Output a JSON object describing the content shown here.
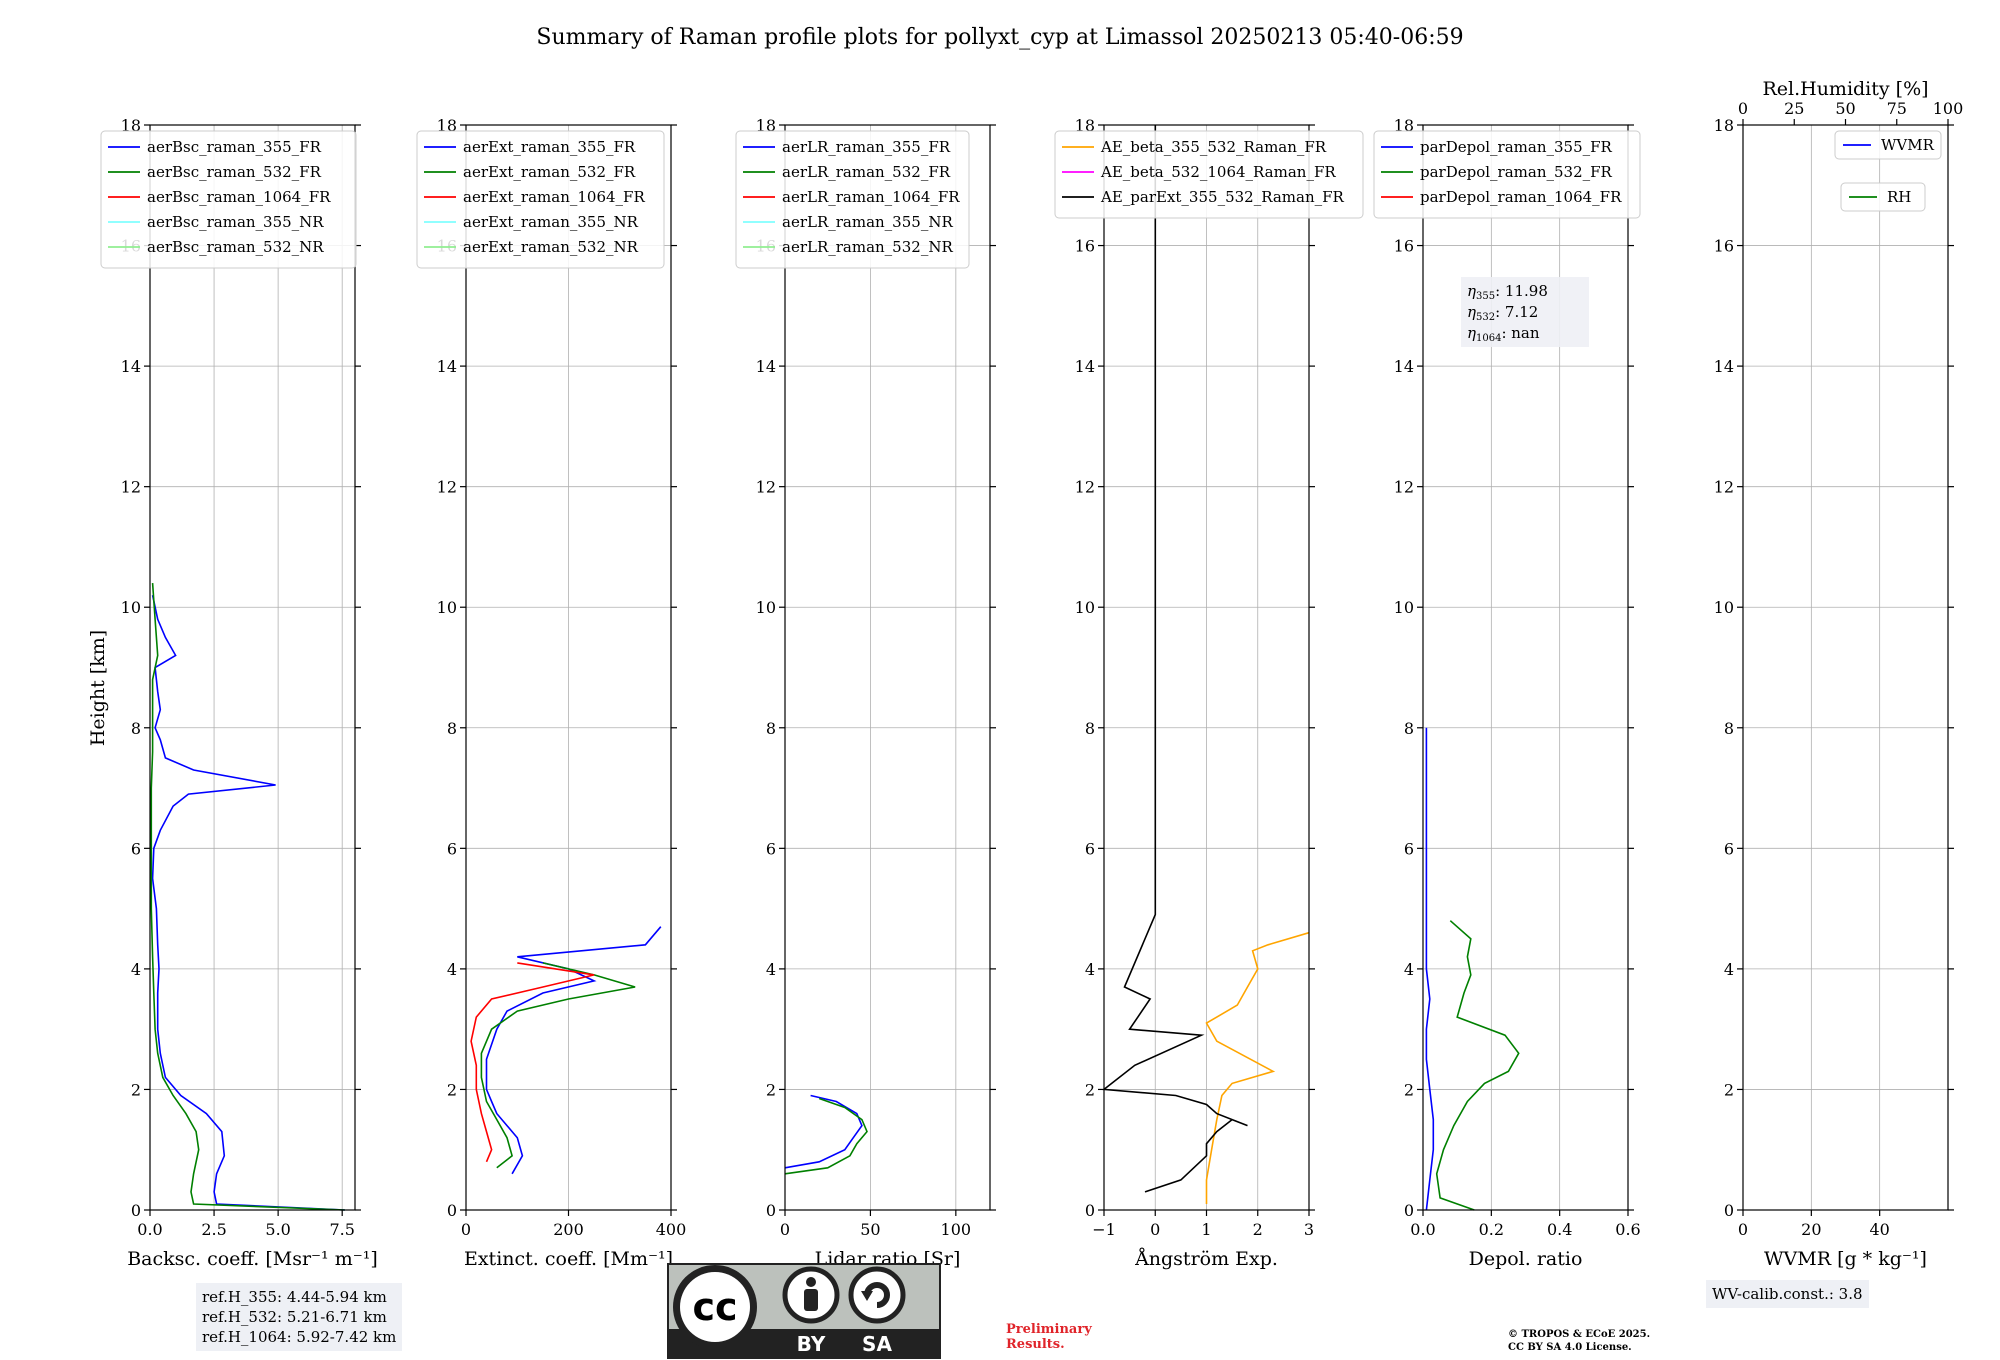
{
  "title": "Summary of Raman profile plots for pollyxt_cyp at Limassol 20250213 05:40-06:59",
  "shared_ylabel": "Height [km]",
  "ref_heights": [
    "ref.H_355: 4.44-5.94 km",
    "ref.H_532: 5.21-6.71 km",
    "ref.H_1064: 5.92-7.42 km"
  ],
  "wv_calib": "WV-calib.const.: 3.8",
  "preliminary": [
    "Preliminary",
    "Results."
  ],
  "copyright": [
    "© TROPOS & ECoE 2025.",
    "CC BY SA 4.0 License."
  ],
  "license_badge": {
    "left": "BY",
    "right": "SA",
    "mark": "cc"
  },
  "colors": {
    "blue": "#0000ff",
    "green": "#008000",
    "red": "#ff0000",
    "cyan": "#80ffff",
    "lightgreen": "#90ee90",
    "orange": "#ffa500",
    "magenta": "#ff00ff",
    "black": "#000000"
  },
  "chart_data": [
    {
      "type": "line",
      "xlabel": "Backsc. coeff. [Msr⁻¹ m⁻¹]",
      "ylabel": "Height [km]",
      "xlim": [
        0,
        8
      ],
      "ylim": [
        0,
        18
      ],
      "xticks": [
        0,
        2.5,
        5,
        7.5
      ],
      "xticklabels": [
        "0.0",
        "2.5",
        "5.0",
        "7.5"
      ],
      "yticks": [
        0,
        2,
        4,
        6,
        8,
        10,
        12,
        14,
        16,
        18
      ],
      "grid": true,
      "legend_position": "top-left",
      "series": [
        {
          "name": "aerBsc_raman_355_FR",
          "color": "#0000ff",
          "points": [
            [
              7.6,
              0
            ],
            [
              2.6,
              0.1
            ],
            [
              2.5,
              0.3
            ],
            [
              2.6,
              0.6
            ],
            [
              2.9,
              0.9
            ],
            [
              2.8,
              1.3
            ],
            [
              2.2,
              1.6
            ],
            [
              1.2,
              1.9
            ],
            [
              0.6,
              2.2
            ],
            [
              0.4,
              2.6
            ],
            [
              0.3,
              3.0
            ],
            [
              0.3,
              3.6
            ],
            [
              0.35,
              4.0
            ],
            [
              0.3,
              4.4
            ],
            [
              0.25,
              5.0
            ],
            [
              0.1,
              5.5
            ],
            [
              0.15,
              6.0
            ],
            [
              0.4,
              6.3
            ],
            [
              0.9,
              6.7
            ],
            [
              1.5,
              6.9
            ],
            [
              4.9,
              7.05
            ],
            [
              1.7,
              7.3
            ],
            [
              0.6,
              7.5
            ],
            [
              0.4,
              7.8
            ],
            [
              0.2,
              8.0
            ],
            [
              0.4,
              8.3
            ],
            [
              0.3,
              8.6
            ],
            [
              0.2,
              9.0
            ],
            [
              1.0,
              9.2
            ],
            [
              0.6,
              9.5
            ],
            [
              0.3,
              9.8
            ],
            [
              0.1,
              10.2
            ]
          ]
        },
        {
          "name": "aerBsc_raman_532_FR",
          "color": "#008000",
          "points": [
            [
              7.6,
              0
            ],
            [
              1.7,
              0.1
            ],
            [
              1.6,
              0.3
            ],
            [
              1.7,
              0.6
            ],
            [
              1.9,
              1.0
            ],
            [
              1.8,
              1.3
            ],
            [
              1.4,
              1.6
            ],
            [
              0.9,
              1.9
            ],
            [
              0.5,
              2.2
            ],
            [
              0.3,
              2.6
            ],
            [
              0.2,
              3.0
            ],
            [
              0.15,
              3.6
            ],
            [
              0.1,
              4.2
            ],
            [
              0.05,
              5.0
            ],
            [
              0.05,
              6.0
            ],
            [
              0.05,
              7.0
            ],
            [
              0.1,
              7.6
            ],
            [
              0.1,
              8.2
            ],
            [
              0.1,
              8.8
            ],
            [
              0.3,
              9.2
            ],
            [
              0.2,
              9.8
            ],
            [
              0.1,
              10.4
            ]
          ]
        },
        {
          "name": "aerBsc_raman_1064_FR",
          "color": "#ff0000",
          "points": []
        },
        {
          "name": "aerBsc_raman_355_NR",
          "color": "#80ffff",
          "points": []
        },
        {
          "name": "aerBsc_raman_532_NR",
          "color": "#90ee90",
          "points": []
        }
      ]
    },
    {
      "type": "line",
      "xlabel": "Extinct. coeff. [Mm⁻¹]",
      "ylabel": "",
      "xlim": [
        0,
        400
      ],
      "ylim": [
        0,
        18
      ],
      "xticks": [
        0,
        200,
        400
      ],
      "xticklabels": [
        "0",
        "200",
        "400"
      ],
      "yticks": [
        0,
        2,
        4,
        6,
        8,
        10,
        12,
        14,
        16,
        18
      ],
      "grid": true,
      "legend_position": "top-left",
      "series": [
        {
          "name": "aerExt_raman_355_FR",
          "color": "#0000ff",
          "points": [
            [
              90,
              0.6
            ],
            [
              110,
              0.9
            ],
            [
              100,
              1.2
            ],
            [
              80,
              1.4
            ],
            [
              60,
              1.6
            ],
            [
              50,
              1.8
            ],
            [
              40,
              2.0
            ],
            [
              40,
              2.5
            ],
            [
              60,
              3.0
            ],
            [
              80,
              3.3
            ],
            [
              150,
              3.6
            ],
            [
              250,
              3.8
            ],
            [
              200,
              4.0
            ],
            [
              100,
              4.2
            ],
            [
              350,
              4.4
            ],
            [
              380,
              4.7
            ]
          ]
        },
        {
          "name": "aerExt_raman_532_FR",
          "color": "#008000",
          "points": [
            [
              60,
              0.7
            ],
            [
              90,
              0.9
            ],
            [
              80,
              1.2
            ],
            [
              60,
              1.5
            ],
            [
              40,
              1.8
            ],
            [
              30,
              2.2
            ],
            [
              30,
              2.6
            ],
            [
              50,
              3.0
            ],
            [
              100,
              3.3
            ],
            [
              200,
              3.5
            ],
            [
              330,
              3.7
            ],
            [
              250,
              3.9
            ],
            [
              150,
              4.1
            ]
          ]
        },
        {
          "name": "aerExt_raman_1064_FR",
          "color": "#ff0000",
          "points": [
            [
              40,
              0.8
            ],
            [
              50,
              1.0
            ],
            [
              40,
              1.3
            ],
            [
              30,
              1.6
            ],
            [
              20,
              2.0
            ],
            [
              20,
              2.4
            ],
            [
              10,
              2.8
            ],
            [
              20,
              3.2
            ],
            [
              50,
              3.5
            ],
            [
              150,
              3.7
            ],
            [
              250,
              3.9
            ],
            [
              100,
              4.1
            ]
          ]
        },
        {
          "name": "aerExt_raman_355_NR",
          "color": "#80ffff",
          "points": []
        },
        {
          "name": "aerExt_raman_532_NR",
          "color": "#90ee90",
          "points": []
        }
      ]
    },
    {
      "type": "line",
      "xlabel": "Lidar ratio [Sr]",
      "ylabel": "",
      "xlim": [
        0,
        120
      ],
      "ylim": [
        0,
        18
      ],
      "xticks": [
        0,
        50,
        100
      ],
      "xticklabels": [
        "0",
        "50",
        "100"
      ],
      "yticks": [
        0,
        2,
        4,
        6,
        8,
        10,
        12,
        14,
        16,
        18
      ],
      "grid": true,
      "legend_position": "top-left",
      "series": [
        {
          "name": "aerLR_raman_355_FR",
          "color": "#0000ff",
          "points": [
            [
              0,
              0.7
            ],
            [
              20,
              0.8
            ],
            [
              35,
              1.0
            ],
            [
              40,
              1.2
            ],
            [
              45,
              1.4
            ],
            [
              42,
              1.6
            ],
            [
              30,
              1.8
            ],
            [
              15,
              1.9
            ]
          ]
        },
        {
          "name": "aerLR_raman_532_FR",
          "color": "#008000",
          "points": [
            [
              0,
              0.6
            ],
            [
              25,
              0.7
            ],
            [
              38,
              0.9
            ],
            [
              42,
              1.1
            ],
            [
              48,
              1.3
            ],
            [
              45,
              1.5
            ],
            [
              35,
              1.7
            ],
            [
              20,
              1.85
            ]
          ]
        },
        {
          "name": "aerLR_raman_1064_FR",
          "color": "#ff0000",
          "points": []
        },
        {
          "name": "aerLR_raman_355_NR",
          "color": "#80ffff",
          "points": []
        },
        {
          "name": "aerLR_raman_532_NR",
          "color": "#90ee90",
          "points": []
        }
      ]
    },
    {
      "type": "line",
      "xlabel": "Ångström Exp.",
      "ylabel": "",
      "xlim": [
        -1,
        3
      ],
      "ylim": [
        0,
        18
      ],
      "xticks": [
        -1,
        0,
        1,
        2,
        3
      ],
      "xticklabels": [
        "−1",
        "0",
        "1",
        "2",
        "3"
      ],
      "yticks": [
        0,
        2,
        4,
        6,
        8,
        10,
        12,
        14,
        16,
        18
      ],
      "grid": true,
      "legend_position": "top-left",
      "series": [
        {
          "name": "AE_beta_355_532_Raman_FR",
          "color": "#ffa500",
          "points": [
            [
              1.0,
              0.1
            ],
            [
              1.0,
              0.5
            ],
            [
              1.1,
              1.0
            ],
            [
              1.2,
              1.5
            ],
            [
              1.3,
              1.9
            ],
            [
              1.5,
              2.1
            ],
            [
              2.3,
              2.3
            ],
            [
              1.2,
              2.8
            ],
            [
              1.0,
              3.1
            ],
            [
              1.6,
              3.4
            ],
            [
              1.8,
              3.7
            ],
            [
              2.0,
              4.0
            ],
            [
              1.9,
              4.3
            ],
            [
              2.2,
              4.4
            ],
            [
              3.0,
              4.6
            ]
          ]
        },
        {
          "name": "AE_beta_532_1064_Raman_FR",
          "color": "#ff00ff",
          "points": []
        },
        {
          "name": "AE_parExt_355_532_Raman_FR",
          "color": "#000000",
          "points": [
            [
              -0.2,
              0.3
            ],
            [
              0.5,
              0.5
            ],
            [
              1.0,
              0.9
            ],
            [
              1.0,
              1.1
            ],
            [
              1.2,
              1.3
            ],
            [
              1.5,
              1.5
            ],
            [
              1.8,
              1.4
            ],
            [
              1.2,
              1.6
            ],
            [
              1.0,
              1.75
            ],
            [
              0.4,
              1.9
            ],
            [
              -1,
              2.0
            ],
            [
              -0.4,
              2.4
            ],
            [
              0.9,
              2.9
            ],
            [
              -0.5,
              3.0
            ],
            [
              -0.1,
              3.5
            ],
            [
              -0.6,
              3.7
            ],
            [
              0.0,
              4.9
            ],
            [
              0.0,
              18.0
            ]
          ]
        }
      ]
    },
    {
      "type": "line",
      "xlabel": "Depol. ratio",
      "ylabel": "",
      "xlim": [
        0,
        0.6
      ],
      "ylim": [
        0,
        18
      ],
      "xticks": [
        0,
        0.2,
        0.4,
        0.6
      ],
      "xticklabels": [
        "0.0",
        "0.2",
        "0.4",
        "0.6"
      ],
      "yticks": [
        0,
        2,
        4,
        6,
        8,
        10,
        12,
        14,
        16,
        18
      ],
      "grid": true,
      "legend_position": "top-left",
      "annotations": [
        [
          "η",
          "355",
          ": 11.98"
        ],
        [
          "η",
          "532",
          ": 7.12"
        ],
        [
          "η",
          "1064",
          ": nan"
        ]
      ],
      "series": [
        {
          "name": "parDepol_raman_355_FR",
          "color": "#0000ff",
          "points": [
            [
              0.01,
              0.0
            ],
            [
              0.02,
              0.5
            ],
            [
              0.03,
              1.0
            ],
            [
              0.03,
              1.5
            ],
            [
              0.02,
              2.0
            ],
            [
              0.01,
              2.5
            ],
            [
              0.01,
              3.0
            ],
            [
              0.02,
              3.5
            ],
            [
              0.01,
              4.0
            ],
            [
              0.01,
              5.0
            ],
            [
              0.01,
              6.0
            ],
            [
              0.01,
              7.0
            ],
            [
              0.01,
              8.0
            ]
          ]
        },
        {
          "name": "parDepol_raman_532_FR",
          "color": "#008000",
          "points": [
            [
              0.15,
              0.0
            ],
            [
              0.05,
              0.2
            ],
            [
              0.04,
              0.6
            ],
            [
              0.06,
              1.0
            ],
            [
              0.09,
              1.4
            ],
            [
              0.13,
              1.8
            ],
            [
              0.18,
              2.1
            ],
            [
              0.25,
              2.3
            ],
            [
              0.28,
              2.6
            ],
            [
              0.24,
              2.9
            ],
            [
              0.1,
              3.2
            ],
            [
              0.12,
              3.6
            ],
            [
              0.14,
              3.9
            ],
            [
              0.13,
              4.2
            ],
            [
              0.14,
              4.5
            ],
            [
              0.08,
              4.8
            ]
          ]
        },
        {
          "name": "parDepol_raman_1064_FR",
          "color": "#ff0000",
          "points": []
        }
      ]
    },
    {
      "type": "line",
      "xlabel": "WVMR [g * kg⁻¹]",
      "ylabel": "",
      "xlim": [
        0,
        60
      ],
      "ylim": [
        0,
        18
      ],
      "xticks": [
        0,
        20,
        40
      ],
      "xticklabels": [
        "0",
        "20",
        "40"
      ],
      "yticks": [
        0,
        2,
        4,
        6,
        8,
        10,
        12,
        14,
        16,
        18
      ],
      "top_xlabel": "Rel.Humidity [%]",
      "top_xlim": [
        0,
        100
      ],
      "top_xticks": [
        0,
        25,
        50,
        75,
        100
      ],
      "top_xticklabels": [
        "0",
        "25",
        "50",
        "75",
        "100"
      ],
      "grid": true,
      "legend_position": "top-right",
      "series": [
        {
          "name": "WVMR",
          "color": "#0000ff",
          "points": []
        },
        {
          "name": "RH",
          "color": "#008000",
          "points": []
        }
      ]
    }
  ]
}
